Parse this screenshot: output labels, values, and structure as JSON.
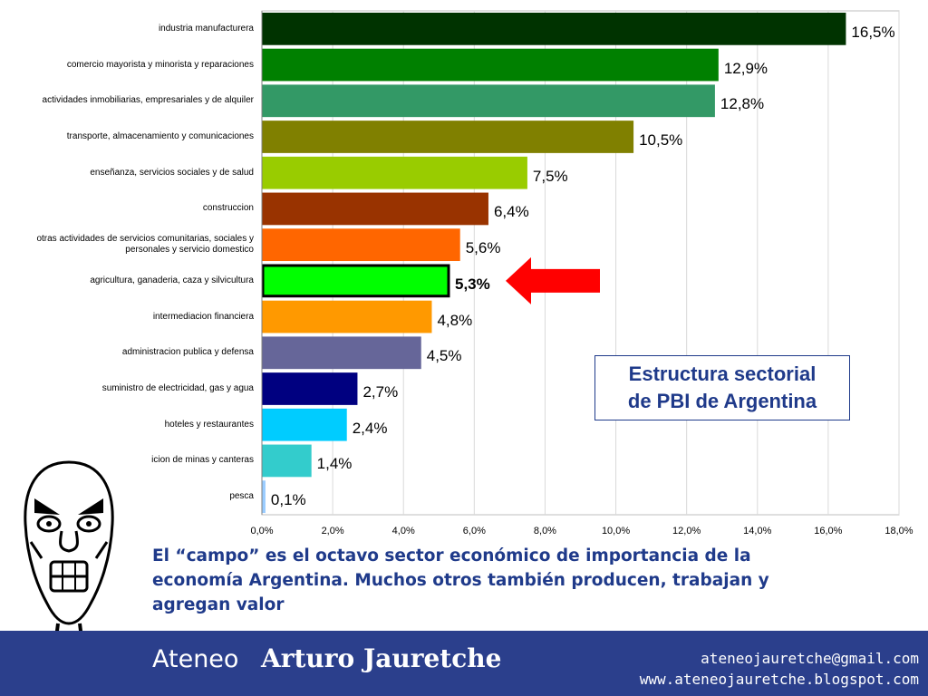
{
  "chart_data": {
    "type": "bar",
    "orientation": "horizontal",
    "categories": [
      "industria manufacturera",
      "comercio mayorista y minorista y reparaciones",
      "actividades inmobiliarias, empresariales y de alquiler",
      "transporte, almacenamiento y comunicaciones",
      "enseñanza, servicios sociales y de salud",
      "construccion",
      "otras actividades de servicios comunitarias, sociales y personales y servicio domestico",
      "agricultura, ganaderia, caza y silvicultura",
      "intermediacion financiera",
      "administracion publica y defensa",
      "suministro de electricidad, gas y agua",
      "hoteles y restaurantes",
      "icion de minas y canteras",
      "pesca"
    ],
    "values": [
      16.5,
      12.9,
      12.8,
      10.5,
      7.5,
      6.4,
      5.6,
      5.3,
      4.8,
      4.5,
      2.7,
      2.4,
      1.4,
      0.1
    ],
    "value_labels": [
      "16,5%",
      "12,9%",
      "12,8%",
      "10,5%",
      "7,5%",
      "6,4%",
      "5,6%",
      "5,3%",
      "4,8%",
      "4,5%",
      "2,7%",
      "2,4%",
      "1,4%",
      "0,1%"
    ],
    "colors": [
      "#003300",
      "#008000",
      "#339966",
      "#808000",
      "#99cc00",
      "#993300",
      "#ff6600",
      "#00ff00",
      "#ff9900",
      "#666699",
      "#000080",
      "#00ccff",
      "#33cccc",
      "#99ccff"
    ],
    "highlight_index": 7,
    "xlim": [
      0,
      18
    ],
    "xticks": [
      0,
      2,
      4,
      6,
      8,
      10,
      12,
      14,
      16,
      18
    ],
    "xtick_labels": [
      "0,0%",
      "2,0%",
      "4,0%",
      "6,0%",
      "8,0%",
      "10,0%",
      "12,0%",
      "14,0%",
      "16,0%",
      "18,0%"
    ],
    "grid": true,
    "title": "Estructura sectorial de PBI de Argentina",
    "xlabel": "",
    "ylabel": ""
  },
  "title_box": {
    "line1": "Estructura sectorial",
    "line2": "de PBI de Argentina"
  },
  "caption": "El “campo” es el octavo sector económico de importancia de la economía Argentina. Muchos otros también producen, trabajan y agregan valor",
  "footer": {
    "org_prefix": "Ateneo",
    "org_name": "Arturo Jauretche",
    "email": "ateneojauretche@gmail.com",
    "website": "www.ateneojauretche.blogspot.com",
    "background": "#2b3f8c"
  },
  "arrow_color": "#ff0000",
  "icons": {
    "arrow": "left-arrow-icon",
    "meme": "angry-face-icon"
  }
}
